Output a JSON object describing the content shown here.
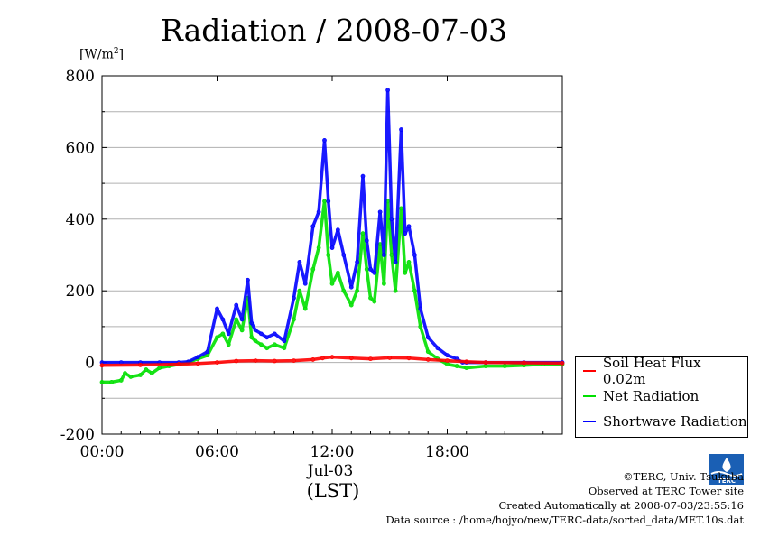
{
  "title": "Radiation / 2008-07-03",
  "unit_label": "[W/m",
  "unit_sup": "2",
  "unit_close": "]",
  "x_sublabel": "Jul-03",
  "x_unit": "(LST)",
  "credits": [
    "©TERC, Univ. Tsukuba",
    "Observed at TERC Tower site",
    "Created Automatically at 2008-07-03/23:55:16",
    "Data source : /home/hojyo/new/TERC-data/sorted_data/MET.10s.dat"
  ],
  "logo_text": "TERC",
  "chart_data": {
    "type": "line",
    "title": "Radiation / 2008-07-03",
    "ylabel": "[W/m2]",
    "xlabel": "(LST)",
    "xlim": [
      0,
      24
    ],
    "ylim": [
      -200,
      800
    ],
    "x_ticks": [
      "00:00",
      "06:00",
      "12:00",
      "18:00"
    ],
    "x_tick_hours": [
      0,
      6,
      12,
      18
    ],
    "y_ticks": [
      "-200",
      "0",
      "200",
      "400",
      "600",
      "800"
    ],
    "grid": true,
    "legend_position": "bottom-right",
    "series": [
      {
        "name": "Soil Heat Flux 0.02m",
        "color": "#ff0000",
        "x": [
          0,
          2,
          4,
          5,
          6,
          7,
          8,
          9,
          10,
          11,
          11.5,
          12,
          13,
          14,
          15,
          16,
          17,
          18,
          19,
          20,
          22,
          24
        ],
        "y": [
          -8,
          -7,
          -5,
          -3,
          0,
          4,
          5,
          4,
          5,
          8,
          12,
          15,
          12,
          10,
          13,
          12,
          8,
          5,
          2,
          0,
          -1,
          -2
        ]
      },
      {
        "name": "Net Radiation",
        "color": "#00e000",
        "x": [
          0,
          0.5,
          1,
          1.2,
          1.5,
          2,
          2.3,
          2.6,
          3,
          3.5,
          4,
          4.5,
          5,
          5.5,
          6,
          6.3,
          6.6,
          7,
          7.3,
          7.6,
          7.8,
          8,
          8.3,
          8.6,
          9,
          9.5,
          10,
          10.3,
          10.6,
          11,
          11.3,
          11.6,
          11.8,
          12,
          12.3,
          12.6,
          13,
          13.3,
          13.6,
          13.8,
          14,
          14.2,
          14.5,
          14.7,
          14.9,
          15.1,
          15.3,
          15.6,
          15.8,
          16,
          16.3,
          16.6,
          17,
          17.5,
          18,
          18.5,
          19,
          20,
          21,
          22,
          23,
          24
        ],
        "y": [
          -55,
          -55,
          -50,
          -30,
          -40,
          -35,
          -20,
          -30,
          -15,
          -10,
          -5,
          0,
          10,
          20,
          70,
          80,
          50,
          120,
          90,
          180,
          70,
          60,
          50,
          40,
          50,
          40,
          120,
          200,
          150,
          260,
          320,
          450,
          300,
          220,
          250,
          200,
          160,
          200,
          360,
          260,
          180,
          170,
          330,
          220,
          450,
          300,
          200,
          430,
          250,
          280,
          200,
          100,
          30,
          10,
          -5,
          -10,
          -15,
          -10,
          -10,
          -8,
          -5,
          -5
        ]
      },
      {
        "name": "Shortwave Radiation",
        "color": "#0000ff",
        "x": [
          0,
          1,
          2,
          3,
          4,
          4.5,
          5,
          5.5,
          6,
          6.3,
          6.6,
          7,
          7.3,
          7.6,
          7.8,
          8,
          8.3,
          8.6,
          9,
          9.5,
          10,
          10.3,
          10.6,
          11,
          11.3,
          11.6,
          11.8,
          12,
          12.3,
          12.6,
          13,
          13.3,
          13.6,
          13.8,
          14,
          14.2,
          14.5,
          14.7,
          14.9,
          15.1,
          15.3,
          15.6,
          15.8,
          16,
          16.3,
          16.6,
          17,
          17.5,
          18,
          18.5,
          18.8,
          19,
          20,
          22,
          24
        ],
        "y": [
          0,
          0,
          0,
          0,
          0,
          2,
          15,
          30,
          150,
          120,
          80,
          160,
          120,
          230,
          110,
          90,
          80,
          70,
          80,
          60,
          180,
          280,
          220,
          380,
          420,
          620,
          450,
          320,
          370,
          300,
          210,
          280,
          520,
          340,
          260,
          250,
          420,
          300,
          760,
          400,
          280,
          650,
          360,
          380,
          300,
          150,
          70,
          40,
          20,
          10,
          0,
          0,
          0,
          0,
          0
        ]
      }
    ]
  }
}
